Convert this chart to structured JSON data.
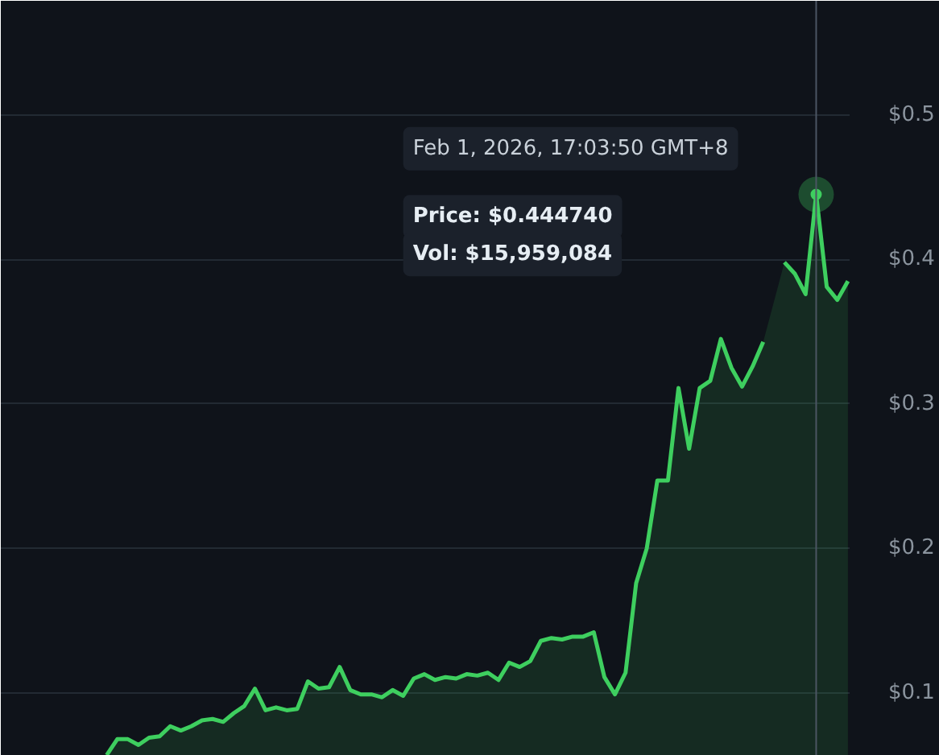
{
  "chart_data": {
    "type": "area",
    "categories": [
      null,
      null,
      null,
      null,
      null,
      null,
      null,
      null,
      null,
      null,
      null,
      null,
      null,
      null,
      null,
      null,
      null,
      null,
      null,
      null,
      null,
      null,
      null,
      null,
      null,
      null,
      null,
      null,
      null,
      null,
      null,
      null,
      null,
      null,
      null,
      null,
      null,
      null,
      null,
      null,
      null,
      null,
      null,
      null,
      null,
      null,
      null,
      null,
      null,
      null,
      null,
      null,
      null,
      null,
      null,
      null,
      null,
      null,
      null,
      null,
      null,
      null,
      null,
      null,
      null,
      null,
      null,
      null,
      null,
      null,
      null
    ],
    "series": [
      {
        "color": "#3ecf5f",
        "values": [
          0.057,
          0.068,
          0.068,
          0.064,
          0.069,
          0.07,
          0.077,
          0.074,
          0.077,
          0.081,
          0.082,
          0.08,
          0.086,
          0.091,
          0.103,
          0.088,
          0.09,
          0.088,
          0.089,
          0.108,
          0.103,
          0.104,
          0.118,
          0.102,
          0.099,
          0.099,
          0.097,
          0.102,
          0.098,
          0.11,
          0.113,
          0.109,
          0.111,
          0.11,
          0.113,
          0.112,
          0.114,
          0.109,
          0.121,
          0.118,
          0.122,
          0.136,
          0.138,
          0.137,
          0.139,
          0.139,
          0.142,
          0.111,
          0.099,
          0.114,
          0.176,
          0.2,
          0.247,
          0.247,
          0.311,
          0.269,
          0.311,
          0.316,
          0.345,
          0.325,
          0.312,
          0.326,
          0.343,
          null,
          0.398,
          0.39,
          0.376,
          0.445,
          0.381,
          0.372,
          0.385
        ]
      }
    ],
    "ylim": [
      0.0565,
      0.579
    ],
    "yticks": [
      {
        "value": 0.1,
        "label": "$0.1"
      },
      {
        "value": 0.2,
        "label": "$0.2"
      },
      {
        "value": 0.3,
        "label": "$0.3"
      },
      {
        "value": 0.4,
        "label": "$0.4"
      },
      {
        "value": 0.5,
        "label": "$0.5"
      }
    ],
    "grid": "y",
    "tick_labels": "y",
    "annotations": [
      "Feb 1, 2026, 17:03:50 GMT+8",
      "Price: $0.444740",
      "Vol: $15,959,084"
    ]
  }
}
